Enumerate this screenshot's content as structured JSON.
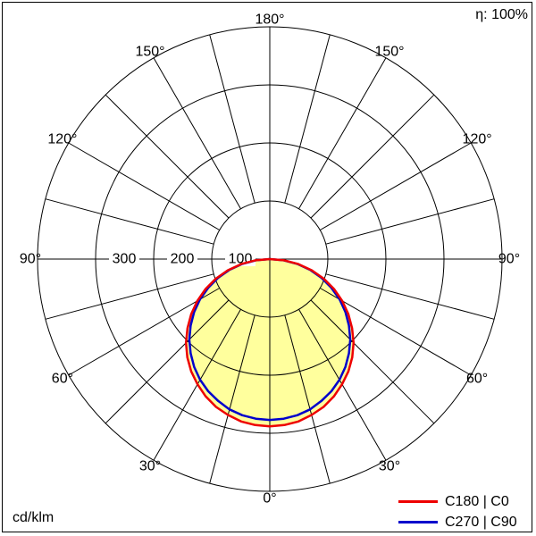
{
  "header": {
    "efficiency_label": "η: 100%"
  },
  "footer": {
    "unit_label": "cd/klm"
  },
  "legend": [
    {
      "label": "C180 | C0",
      "color": "#ee0000"
    },
    {
      "label": "C270 | C90",
      "color": "#0000cc"
    }
  ],
  "chart_data": {
    "type": "line",
    "coordinate_system": "polar",
    "description": "Luminous intensity distribution curve of a luminaire (polar photometric diagram), 0° at bottom, 180° at top",
    "unit": "cd/klm",
    "efficiency": "100%",
    "radial_axis": {
      "ticks": [
        {
          "value": 100,
          "label": "100"
        },
        {
          "value": 200,
          "label": "200"
        },
        {
          "value": 300,
          "label": "300"
        }
      ],
      "max": 400
    },
    "angle_axis": {
      "step_deg": 15,
      "top": {
        "deg": 180,
        "label": "180°"
      },
      "bottom": {
        "deg": 0,
        "label": "0°"
      },
      "side_ticks": [
        {
          "deg": 150,
          "label": "150°"
        },
        {
          "deg": 120,
          "label": "120°"
        },
        {
          "deg": 90,
          "label": "90°"
        },
        {
          "deg": 60,
          "label": "60°"
        },
        {
          "deg": 30,
          "label": "30°"
        }
      ]
    },
    "grid": {
      "color": "#000000",
      "inner_radius_value": 100,
      "circle_values": [
        100,
        200,
        300,
        400
      ]
    },
    "series": [
      {
        "name": "C180 | C0",
        "color": "#ee0000",
        "fill": "#ffff9d",
        "symmetric": true,
        "gamma_deg": [
          0,
          5,
          10,
          15,
          20,
          25,
          30,
          35,
          40,
          45,
          50,
          55,
          60,
          65,
          70,
          75,
          80,
          85,
          90
        ],
        "values": [
          288,
          287,
          284,
          278,
          271,
          261,
          249,
          236,
          221,
          204,
          185,
          165,
          144,
          122,
          99,
          75,
          50,
          25,
          0
        ]
      },
      {
        "name": "C270 | C90",
        "color": "#0000cc",
        "symmetric": true,
        "gamma_deg": [
          0,
          5,
          10,
          15,
          20,
          25,
          30,
          35,
          40,
          45,
          50,
          55,
          60,
          65,
          70,
          75,
          80,
          85,
          90
        ],
        "values": [
          277,
          276,
          273,
          268,
          260,
          251,
          240,
          227,
          212,
          196,
          178,
          159,
          139,
          117,
          95,
          72,
          48,
          24,
          0
        ]
      }
    ]
  }
}
